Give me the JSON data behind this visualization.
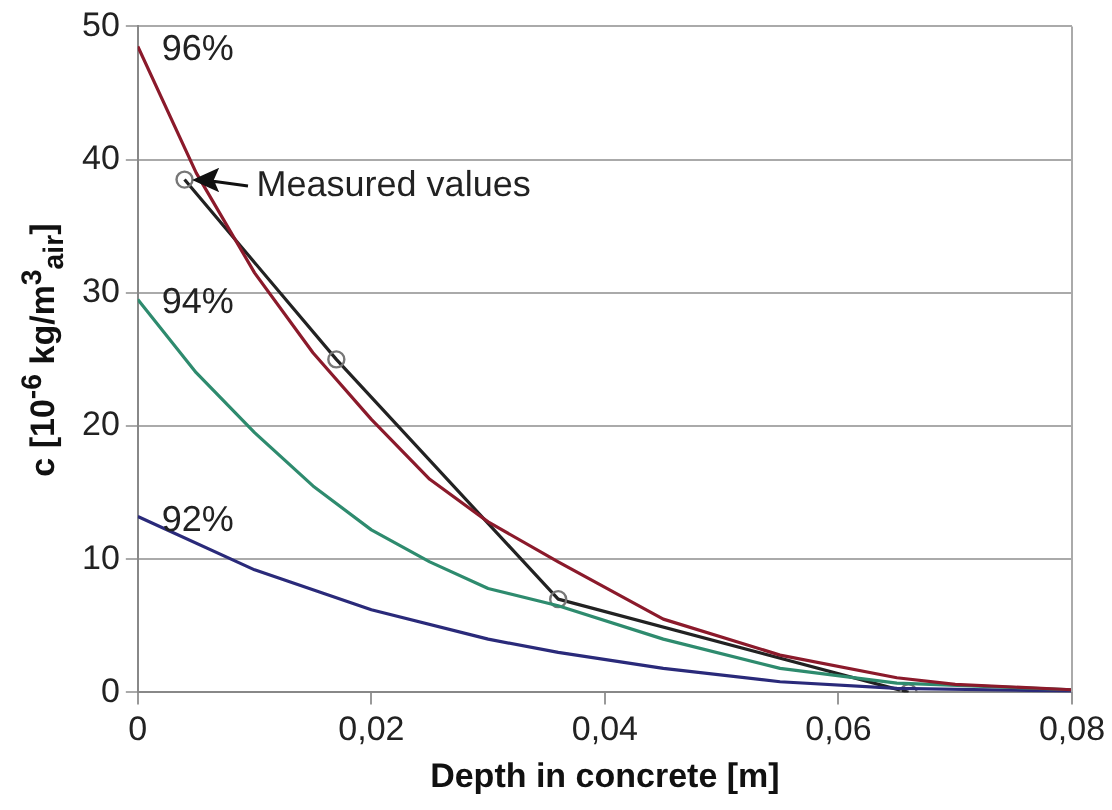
{
  "chart_data": {
    "type": "line",
    "xlabel": "Depth in concrete [m]",
    "ylabel": "c [10$^{-6}$ kg/m$^{3}$$_{air}$]",
    "xlim": [
      0,
      0.08
    ],
    "xticks": [
      0,
      {
        "value": 0.02,
        "label": "0,02"
      },
      {
        "value": 0.04,
        "label": "0,04"
      },
      {
        "value": 0.06,
        "label": "0,06"
      },
      {
        "value": 0.08,
        "label": "0,08"
      }
    ],
    "ylim": [
      0,
      50
    ],
    "yticks": [
      0,
      10,
      20,
      30,
      40,
      50
    ],
    "grid": "y",
    "legend": false,
    "line_style": "solid",
    "series": [
      {
        "name": "96%",
        "color": "#8b1a2b",
        "marker": "none",
        "x": [
          0,
          0.005,
          0.01,
          0.015,
          0.02,
          0.025,
          0.03,
          0.036,
          0.045,
          0.055,
          0.065,
          0.07,
          0.08
        ],
        "values": [
          48.5,
          39,
          31.5,
          25.5,
          20.5,
          16,
          12.8,
          9.8,
          5.5,
          2.8,
          1.1,
          0.6,
          0.2
        ]
      },
      {
        "name": "94%",
        "color": "#2e8b6e",
        "marker": "none",
        "x": [
          0,
          0.005,
          0.01,
          0.015,
          0.02,
          0.025,
          0.03,
          0.036,
          0.045,
          0.055,
          0.065,
          0.08
        ],
        "values": [
          29.5,
          24,
          19.5,
          15.5,
          12.2,
          9.8,
          7.8,
          6.5,
          4,
          1.8,
          0.7,
          0.2
        ]
      },
      {
        "name": "92%",
        "color": "#2a2a7a",
        "marker": "none",
        "x": [
          0,
          0.01,
          0.02,
          0.03,
          0.036,
          0.045,
          0.055,
          0.065,
          0.08
        ],
        "values": [
          13.2,
          9.2,
          6.2,
          4,
          3,
          1.8,
          0.8,
          0.3,
          0.1
        ]
      },
      {
        "color": "#222222",
        "marker": "circle",
        "x": [
          0.004,
          0.017,
          0.036,
          0.066
        ],
        "values": [
          38.5,
          25,
          7,
          0
        ]
      }
    ],
    "annotations": [
      {
        "text": "Measured values",
        "x": 0.004,
        "y": 38.5
      }
    ]
  }
}
